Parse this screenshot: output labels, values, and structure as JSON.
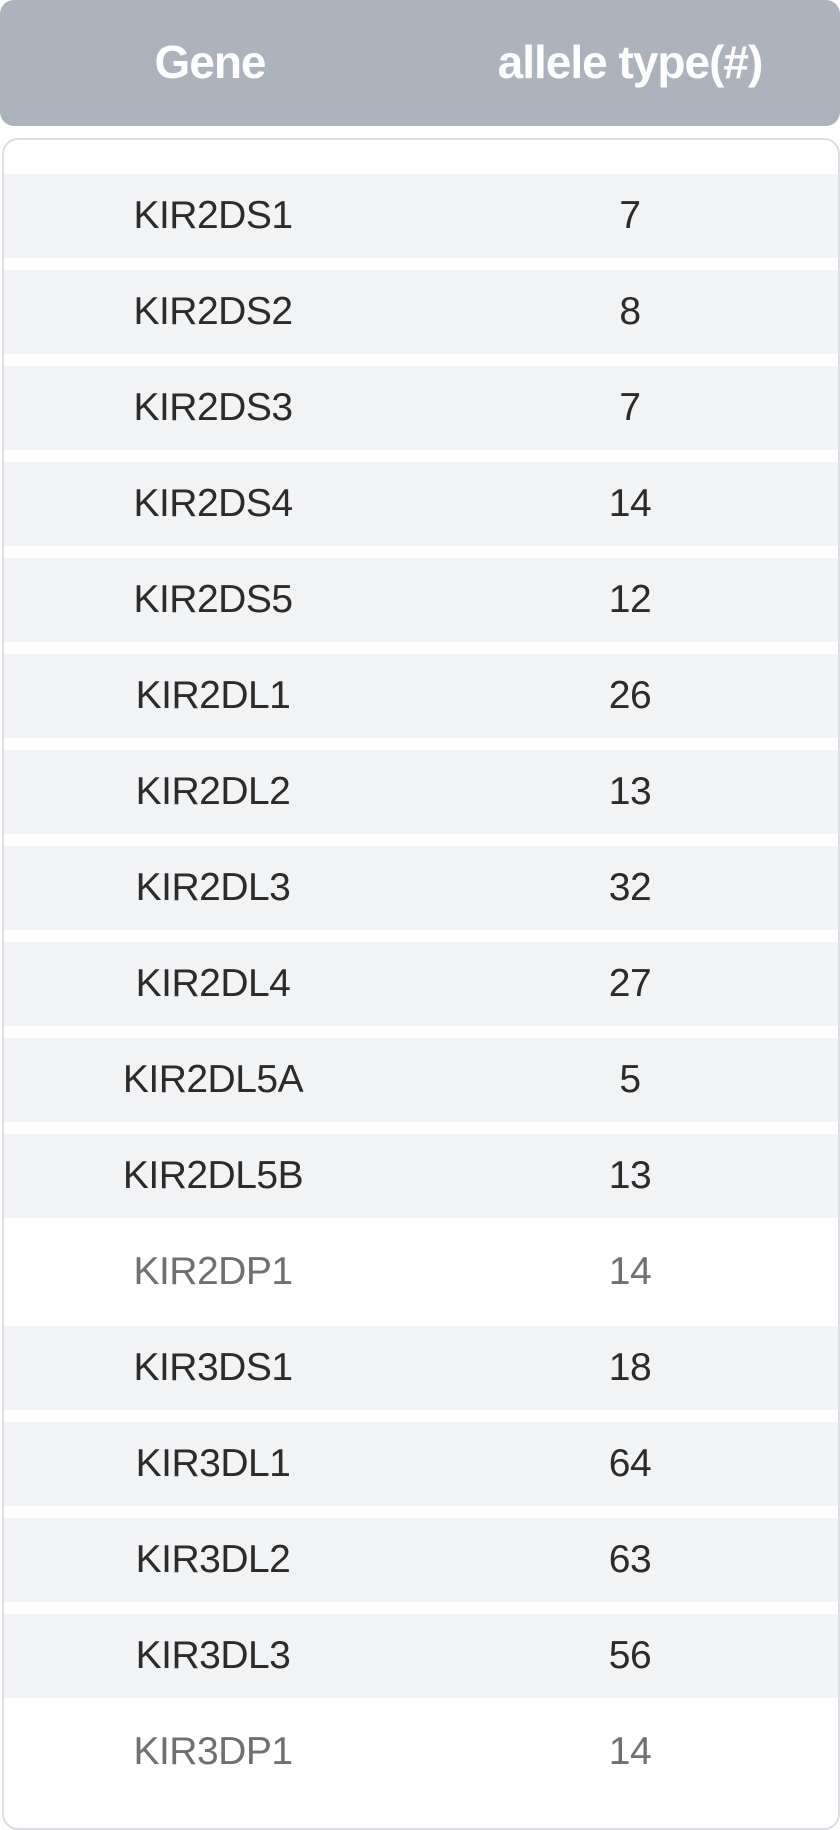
{
  "table": {
    "columns": [
      "Gene",
      "allele type(#)"
    ],
    "rows": [
      {
        "gene": "KIR2DS1",
        "count": "7"
      },
      {
        "gene": "KIR2DS2",
        "count": "8"
      },
      {
        "gene": "KIR2DS3",
        "count": "7"
      },
      {
        "gene": "KIR2DS4",
        "count": "14"
      },
      {
        "gene": "KIR2DS5",
        "count": "12"
      },
      {
        "gene": "KIR2DL1",
        "count": "26"
      },
      {
        "gene": "KIR2DL2",
        "count": "13"
      },
      {
        "gene": "KIR2DL3",
        "count": "32"
      },
      {
        "gene": "KIR2DL4",
        "count": "27"
      },
      {
        "gene": "KIR2DL5A",
        "count": "5"
      },
      {
        "gene": "KIR2DL5B",
        "count": "13"
      },
      {
        "gene": "KIR2DP1",
        "count": "14"
      },
      {
        "gene": "KIR3DS1",
        "count": "18"
      },
      {
        "gene": "KIR3DL1",
        "count": "64"
      },
      {
        "gene": "KIR3DL2",
        "count": "63"
      },
      {
        "gene": "KIR3DL3",
        "count": "56"
      },
      {
        "gene": "KIR3DP1",
        "count": "14"
      }
    ]
  },
  "colors": {
    "header_bg": "#adb3bd",
    "header_text": "#ffffff",
    "row_shaded": "#f2f3f5",
    "text_primary": "#2b2b2b",
    "text_muted": "#707070"
  }
}
